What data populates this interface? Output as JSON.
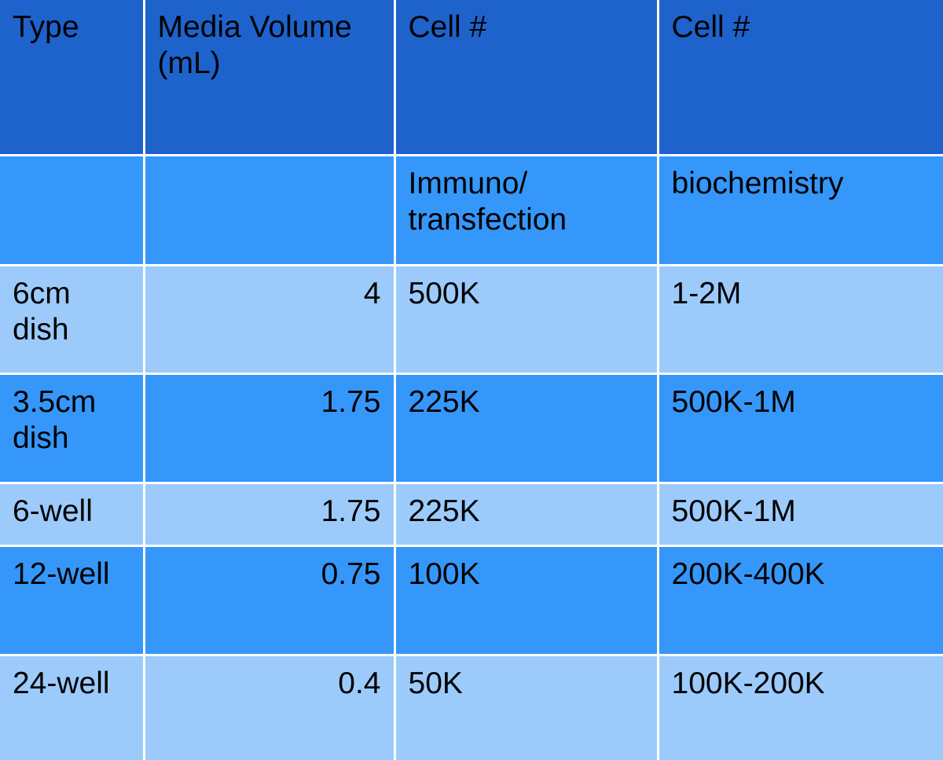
{
  "colors": {
    "header_bg": "#1e63cc",
    "band_dark": "#3597f9",
    "band_light": "#9ccbfb",
    "text": "#000000",
    "grid_line": "#ffffff"
  },
  "table": {
    "header": {
      "type": "Type",
      "media_volume": "Media Volume (mL)",
      "cell_immuno": "Cell #",
      "cell_biochem": "Cell #"
    },
    "subheader": {
      "type": "",
      "media_volume": "",
      "cell_immuno": "Immuno/ transfection",
      "cell_biochem": "biochemistry"
    },
    "rows": [
      {
        "type": "6cm dish",
        "media_volume": "4",
        "cell_immuno": "500K",
        "cell_biochem": "1-2M",
        "band": "light"
      },
      {
        "type": "3.5cm dish",
        "media_volume": "1.75",
        "cell_immuno": "225K",
        "cell_biochem": "500K-1M",
        "band": "dark"
      },
      {
        "type": "6-well",
        "media_volume": "1.75",
        "cell_immuno": "225K",
        "cell_biochem": "500K-1M",
        "band": "light"
      },
      {
        "type": "12-well",
        "media_volume": "0.75",
        "cell_immuno": "100K",
        "cell_biochem": "200K-400K",
        "band": "dark"
      },
      {
        "type": "24-well",
        "media_volume": "0.4",
        "cell_immuno": "50K",
        "cell_biochem": "100K-200K",
        "band": "light"
      }
    ]
  }
}
